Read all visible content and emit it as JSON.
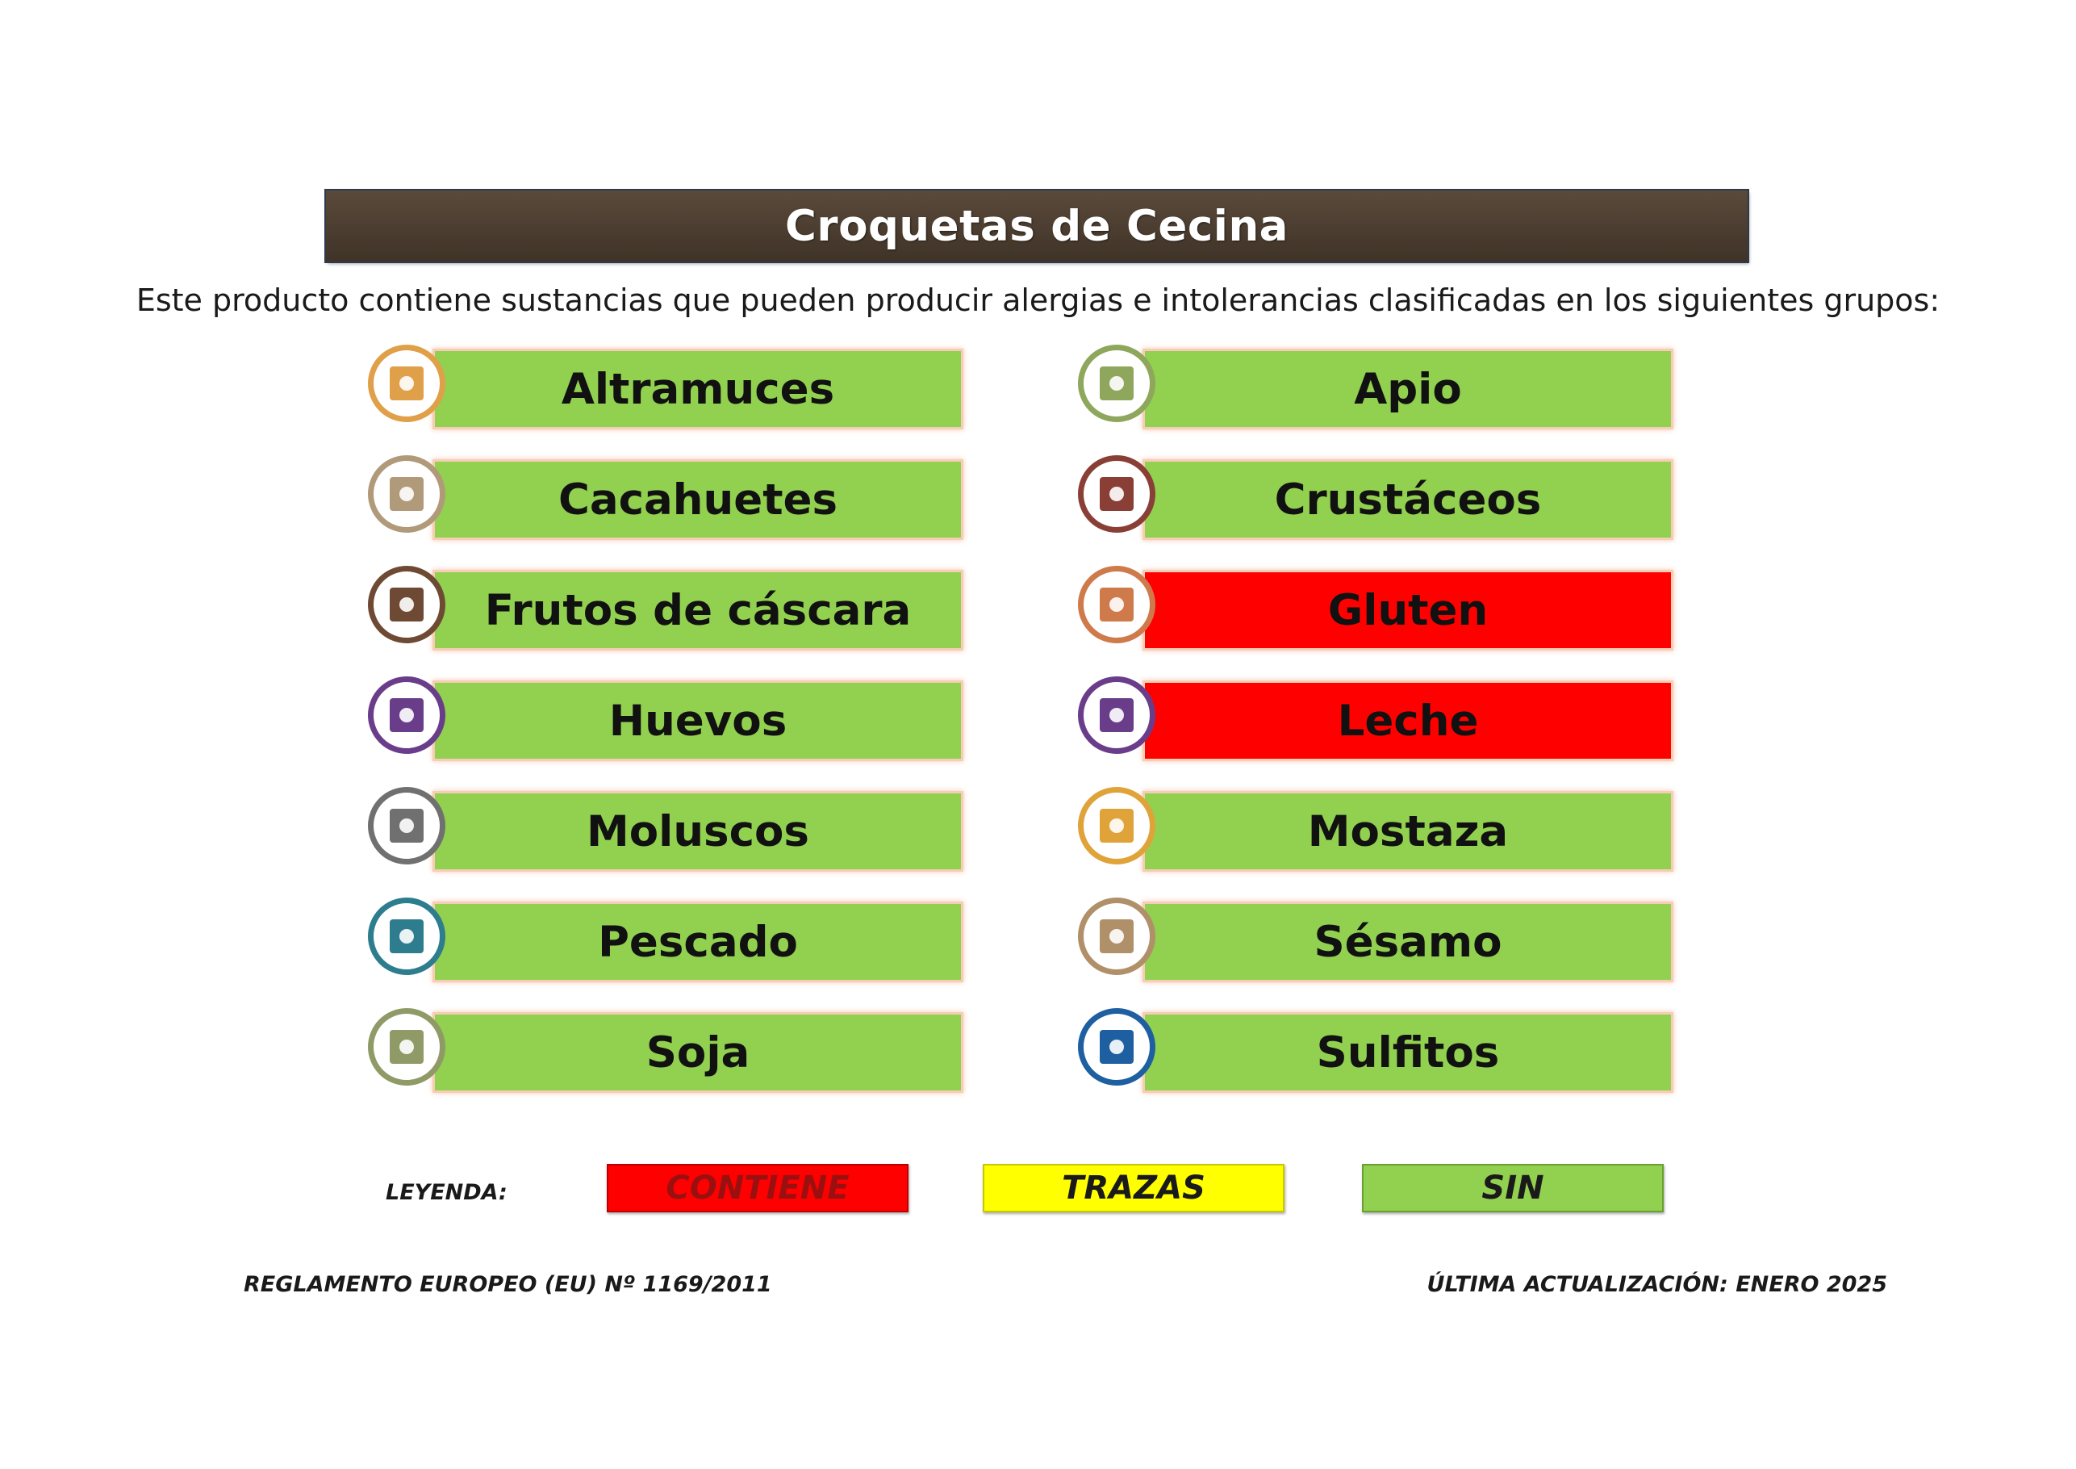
{
  "title": "Croquetas de Cecina",
  "intro": "Este producto contiene sustancias que pueden producir alergias e intolerancias clasificadas en los siguientes grupos:",
  "colors": {
    "sin": "#92d050",
    "contiene": "#ff0000",
    "trazas": "#ffff00",
    "title_bg": "#4a3c2f"
  },
  "allergens_left": [
    {
      "label": "Altramuces",
      "status": "sin",
      "icon": "lupin-icon",
      "color": "#e0a04a"
    },
    {
      "label": "Cacahuetes",
      "status": "sin",
      "icon": "peanut-icon",
      "color": "#b09a7a"
    },
    {
      "label": "Frutos de cáscara",
      "status": "sin",
      "icon": "nut-icon",
      "color": "#6e4a35"
    },
    {
      "label": "Huevos",
      "status": "sin",
      "icon": "egg-icon",
      "color": "#6a3d8a"
    },
    {
      "label": "Moluscos",
      "status": "sin",
      "icon": "shell-icon",
      "color": "#707070"
    },
    {
      "label": "Pescado",
      "status": "sin",
      "icon": "fish-icon",
      "color": "#2d7d8f"
    },
    {
      "label": "Soja",
      "status": "sin",
      "icon": "soy-icon",
      "color": "#8f9a66"
    }
  ],
  "allergens_right": [
    {
      "label": "Apio",
      "status": "sin",
      "icon": "celery-icon",
      "color": "#8fa75c"
    },
    {
      "label": "Crustáceos",
      "status": "sin",
      "icon": "shrimp-icon",
      "color": "#8a3f36"
    },
    {
      "label": "Gluten",
      "status": "contiene",
      "icon": "wheat-icon",
      "color": "#cf7a4a"
    },
    {
      "label": "Leche",
      "status": "contiene",
      "icon": "milk-icon",
      "color": "#6a3d8a"
    },
    {
      "label": "Mostaza",
      "status": "sin",
      "icon": "mustard-icon",
      "color": "#e0a33a"
    },
    {
      "label": "Sésamo",
      "status": "sin",
      "icon": "sesame-icon",
      "color": "#b09068"
    },
    {
      "label": "Sulfitos",
      "status": "sin",
      "icon": "sulphite-icon",
      "color": "#1d5fa0"
    }
  ],
  "legend": {
    "label": "LEYENDA:",
    "contiene": "CONTIENE",
    "trazas": "TRAZAS",
    "sin": "SIN"
  },
  "footer": {
    "regulation": "REGLAMENTO EUROPEO (EU) Nº 1169/2011",
    "updated": "ÚLTIMA ACTUALIZACIÓN: ENERO 2025"
  }
}
